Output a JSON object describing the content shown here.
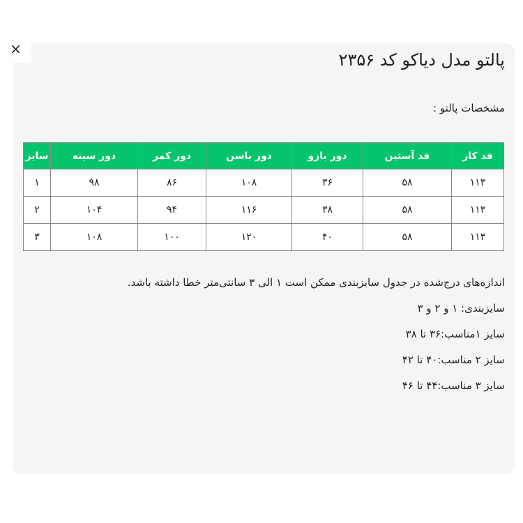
{
  "close_label": "×",
  "title": "پالتو مدل دیاکو کد ۲۳۵۶",
  "subtitle": "مشخصات پالتو :",
  "table": {
    "headers": [
      "قد کار",
      "قد آستین",
      "دور بازو",
      "دور باسن",
      "دور کمر",
      "دور سینه",
      "سایز"
    ],
    "rows": [
      [
        "۱۱۳",
        "۵۸",
        "۳۶",
        "۱۰۸",
        "۸۶",
        "۹۸",
        "۱"
      ],
      [
        "۱۱۳",
        "۵۸",
        "۳۸",
        "۱۱۶",
        "۹۴",
        "۱۰۴",
        "۲"
      ],
      [
        "۱۱۳",
        "۵۸",
        "۴۰",
        "۱۲۰",
        "۱۰۰",
        "۱۰۸",
        "۳"
      ]
    ],
    "header_color": "#05c46b"
  },
  "notes": [
    "اندازه‌های درج‌شده در جدول سایزبندی ممکن است ۱ الی ۳ سانتی‌متر خطا داشته باشد.",
    "سایزبندی: ۱ و ۲ و ۳",
    "سایز ۱مناسب:۳۶ تا ۳۸",
    "سایز ۲ مناسب:۴۰ تا ۴۲",
    "سایز ۳ مناسب:۴۴ تا ۴۶"
  ]
}
